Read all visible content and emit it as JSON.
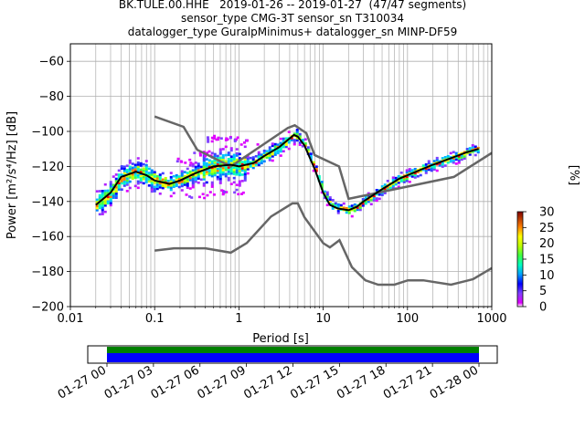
{
  "title": {
    "line1": "BK.TULE.00.HHE   2019-01-26 -- 2019-01-27  (47/47 segments)",
    "line2": "sensor_type CMG-3T sensor_sn T310034",
    "line3": "datalogger_type GuralpMinimus+ datalogger_sn MINP-DF59"
  },
  "chart_data": {
    "type": "heatmap",
    "xlabel": "Period [s]",
    "ylabel": "Power [m²/s⁴/Hz] [dB]",
    "x_scale": "log",
    "xlim": [
      0.01,
      1000
    ],
    "ylim": [
      -200,
      -50
    ],
    "x_ticks": [
      0.01,
      0.1,
      1,
      10,
      100,
      1000
    ],
    "x_tick_labels": [
      "0.01",
      "0.1",
      "1",
      "10",
      "100",
      "1000"
    ],
    "y_ticks": [
      -200,
      -180,
      -160,
      -140,
      -120,
      -100,
      -80,
      -60
    ],
    "y_tick_labels": [
      "−200",
      "−180",
      "−160",
      "−140",
      "−120",
      "−100",
      "−80",
      "−60"
    ],
    "grid": true,
    "colorbar": {
      "label": "[%]",
      "range": [
        0,
        30
      ],
      "ticks": [
        0,
        5,
        10,
        15,
        20,
        25,
        30
      ],
      "tick_labels": [
        "0",
        "5",
        "10",
        "15",
        "20",
        "25",
        "30"
      ]
    },
    "mode_curve": [
      [
        0.02,
        -142
      ],
      [
        0.03,
        -135
      ],
      [
        0.04,
        -126
      ],
      [
        0.06,
        -123
      ],
      [
        0.08,
        -125
      ],
      [
        0.1,
        -128
      ],
      [
        0.15,
        -130
      ],
      [
        0.2,
        -128
      ],
      [
        0.3,
        -124
      ],
      [
        0.5,
        -120
      ],
      [
        0.8,
        -119
      ],
      [
        1,
        -120
      ],
      [
        1.5,
        -118
      ],
      [
        2,
        -114
      ],
      [
        3,
        -109
      ],
      [
        4,
        -104
      ],
      [
        4.5,
        -102
      ],
      [
        5,
        -103
      ],
      [
        6,
        -108
      ],
      [
        8,
        -122
      ],
      [
        10,
        -135
      ],
      [
        12,
        -142
      ],
      [
        15,
        -144
      ],
      [
        20,
        -145
      ],
      [
        25,
        -143
      ],
      [
        30,
        -140
      ],
      [
        50,
        -133
      ],
      [
        80,
        -127
      ],
      [
        100,
        -125
      ],
      [
        200,
        -119
      ],
      [
        300,
        -116
      ],
      [
        500,
        -112
      ],
      [
        700,
        -110
      ]
    ],
    "nhnm": [
      [
        0.1,
        -91.5
      ],
      [
        0.22,
        -97.4
      ],
      [
        0.32,
        -110.5
      ],
      [
        0.8,
        -120
      ],
      [
        3.8,
        -98
      ],
      [
        4.6,
        -96.5
      ],
      [
        6.3,
        -101
      ],
      [
        7.9,
        -113.5
      ],
      [
        15.4,
        -120
      ],
      [
        20,
        -138.5
      ],
      [
        354.8,
        -126
      ],
      [
        1000,
        -112.3
      ]
    ],
    "nlnm": [
      [
        0.1,
        -168
      ],
      [
        0.17,
        -166.7
      ],
      [
        0.4,
        -166.7
      ],
      [
        0.8,
        -169.2
      ],
      [
        1.24,
        -163.7
      ],
      [
        2.4,
        -148.6
      ],
      [
        4.3,
        -141.1
      ],
      [
        5,
        -141.1
      ],
      [
        6,
        -149
      ],
      [
        10,
        -163.8
      ],
      [
        12,
        -166.2
      ],
      [
        15.6,
        -162.1
      ],
      [
        21.9,
        -177.5
      ],
      [
        31.6,
        -185
      ],
      [
        45,
        -187.5
      ],
      [
        70,
        -187.5
      ],
      [
        101,
        -185
      ],
      [
        154,
        -185
      ],
      [
        328,
        -187.5
      ],
      [
        600,
        -184.4
      ],
      [
        1000,
        -178
      ]
    ],
    "psd_density": [
      {
        "period_range": [
          0.019,
          0.1
        ],
        "db_range": [
          -146,
          -114
        ],
        "peak_db": -125
      },
      {
        "period_range": [
          0.1,
          0.3
        ],
        "db_range": [
          -140,
          -120
        ],
        "peak_db": -130
      },
      {
        "period_range": [
          0.3,
          1
        ],
        "db_range": [
          -145,
          -103
        ],
        "peak_db": -120
      },
      {
        "period_range": [
          1,
          5
        ],
        "db_range": [
          -128,
          -100
        ],
        "peak_db": -110
      },
      {
        "period_range": [
          5,
          30
        ],
        "db_range": [
          -148,
          -100
        ],
        "peak_db": -140
      },
      {
        "period_range": [
          30,
          700
        ],
        "db_range": [
          -140,
          -105
        ],
        "peak_db": -120
      }
    ]
  },
  "timeline": {
    "tick_labels": [
      "01-27 00",
      "01-27 03",
      "01-27 06",
      "01-27 09",
      "01-27 12",
      "01-27 15",
      "01-27 18",
      "01-27 21",
      "01-28 00"
    ],
    "coverage_color": "#008000",
    "data_color": "#0000ff"
  }
}
